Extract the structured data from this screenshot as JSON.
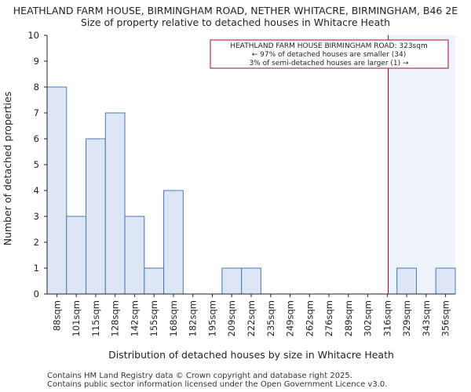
{
  "chart_data": {
    "type": "bar",
    "title": "HEATHLAND FARM HOUSE, BIRMINGHAM ROAD, NETHER WHITACRE, BIRMINGHAM, B46 2E",
    "subtitle": "Size of property relative to detached houses in Whitacre Heath",
    "xlabel": "Distribution of detached houses by size in Whitacre Heath",
    "ylabel": "Number of detached properties",
    "categories": [
      "88sqm",
      "101sqm",
      "115sqm",
      "128sqm",
      "142sqm",
      "155sqm",
      "168sqm",
      "182sqm",
      "195sqm",
      "209sqm",
      "222sqm",
      "235sqm",
      "249sqm",
      "262sqm",
      "276sqm",
      "289sqm",
      "302sqm",
      "316sqm",
      "329sqm",
      "343sqm",
      "356sqm"
    ],
    "values": [
      8,
      3,
      6,
      7,
      3,
      1,
      4,
      0,
      0,
      1,
      1,
      0,
      0,
      0,
      0,
      0,
      0,
      0,
      1,
      0,
      1
    ],
    "ylim": [
      0,
      10
    ],
    "yticks": [
      0,
      1,
      2,
      3,
      4,
      5,
      6,
      7,
      8,
      9,
      10
    ],
    "marker_value": 323,
    "marker_bin_position": 17.55,
    "colors": {
      "bar_fill": "#dce6f5",
      "bar_stroke": "#4a76b5",
      "marker": "#b00020",
      "shade": "#eef3fb"
    },
    "annotation": [
      "HEATHLAND FARM HOUSE BIRMINGHAM ROAD: 323sqm",
      "← 97% of detached houses are smaller (34)",
      "3% of semi-detached houses are larger (1) →"
    ]
  },
  "footer": [
    "Contains HM Land Registry data © Crown copyright and database right 2025.",
    "Contains public sector information licensed under the Open Government Licence v3.0."
  ]
}
